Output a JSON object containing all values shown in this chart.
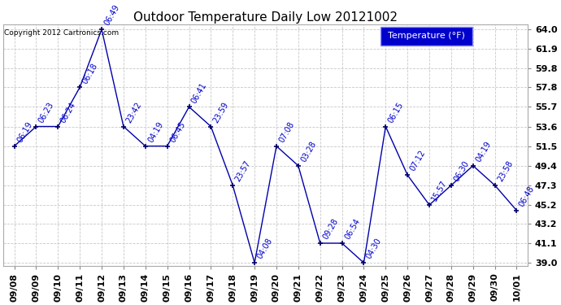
{
  "title": "Outdoor Temperature Daily Low 20121002",
  "copyright": "Copyright 2012 Cartronics.com",
  "legend_label": "Temperature (°F)",
  "x_labels": [
    "09/08",
    "09/09",
    "09/10",
    "09/11",
    "09/12",
    "09/13",
    "09/14",
    "09/15",
    "09/16",
    "09/17",
    "09/18",
    "09/19",
    "09/20",
    "09/21",
    "09/22",
    "09/23",
    "09/24",
    "09/25",
    "09/26",
    "09/27",
    "09/28",
    "09/29",
    "09/30",
    "10/01"
  ],
  "temperatures": [
    51.5,
    53.6,
    53.6,
    57.8,
    64.0,
    53.6,
    51.5,
    51.5,
    55.7,
    53.6,
    47.3,
    39.0,
    51.5,
    49.4,
    41.1,
    41.1,
    39.0,
    53.6,
    48.4,
    45.2,
    47.3,
    49.4,
    47.3,
    44.6
  ],
  "times": [
    "06:19",
    "06:23",
    "06:24",
    "06:18",
    "06:49",
    "23:42",
    "04:19",
    "06:45",
    "06:41",
    "23:59",
    "23:57",
    "04:08",
    "07:08",
    "03:28",
    "09:28",
    "06:54",
    "04:30",
    "06:15",
    "07:12",
    "15:57",
    "06:30",
    "04:19",
    "23:58",
    "06:48"
  ],
  "ylim_min": 39.0,
  "ylim_max": 64.0,
  "yticks": [
    39.0,
    41.1,
    43.2,
    45.2,
    47.3,
    49.4,
    51.5,
    53.6,
    55.7,
    57.8,
    59.8,
    61.9,
    64.0
  ],
  "line_color": "#0000aa",
  "marker_color": "#000066",
  "bg_color": "#ffffff",
  "plot_bg_color": "#ffffff",
  "grid_color": "#c8c8c8",
  "legend_bg": "#0000cc",
  "legend_text_color": "#ffffff",
  "title_color": "#000000",
  "copyright_color": "#000000",
  "label_color": "#0000cc",
  "label_fontsize": 7,
  "title_fontsize": 11,
  "tick_fontsize": 8,
  "label_rotation": 60
}
